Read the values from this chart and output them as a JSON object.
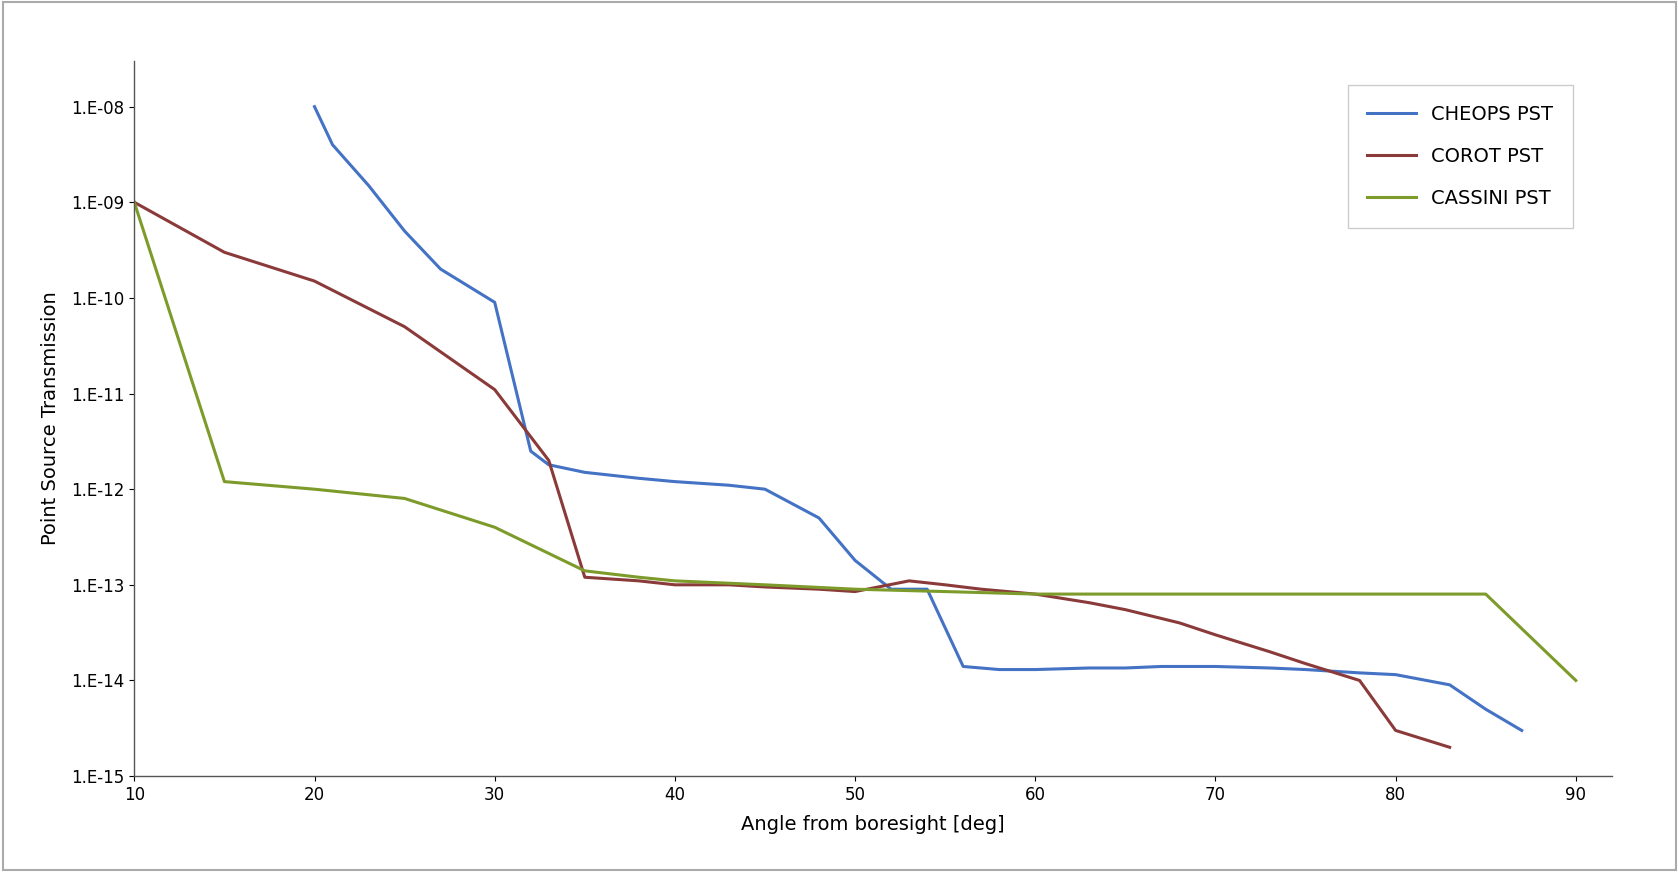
{
  "title": "",
  "xlabel": "Angle from boresight [deg]",
  "ylabel": "Point Source Transmission",
  "xlim": [
    10,
    92
  ],
  "ylim": [
    1e-15,
    3e-08
  ],
  "cheops_x": [
    20,
    21,
    23,
    25,
    27,
    30,
    32,
    33,
    35,
    38,
    40,
    43,
    45,
    48,
    50,
    52,
    54,
    56,
    58,
    60,
    63,
    65,
    67,
    70,
    73,
    75,
    78,
    80,
    83,
    85,
    87
  ],
  "cheops_y": [
    1e-08,
    4e-09,
    1.5e-09,
    5e-10,
    2e-10,
    9e-11,
    2.5e-12,
    1.8e-12,
    1.5e-12,
    1.3e-12,
    1.2e-12,
    1.1e-12,
    1e-12,
    5e-13,
    1.8e-13,
    9e-14,
    9e-14,
    1.4e-14,
    1.3e-14,
    1.3e-14,
    1.35e-14,
    1.35e-14,
    1.4e-14,
    1.4e-14,
    1.35e-14,
    1.3e-14,
    1.2e-14,
    1.15e-14,
    9e-15,
    5e-15,
    3e-15
  ],
  "corot_x": [
    10,
    15,
    20,
    25,
    30,
    33,
    35,
    38,
    40,
    43,
    45,
    48,
    50,
    53,
    55,
    57,
    60,
    63,
    65,
    68,
    70,
    73,
    75,
    78,
    80,
    83
  ],
  "corot_y": [
    1e-09,
    3e-10,
    1.5e-10,
    5e-11,
    1.1e-11,
    2e-12,
    1.2e-13,
    1.1e-13,
    1e-13,
    1e-13,
    9.5e-14,
    9e-14,
    8.5e-14,
    1.1e-13,
    1e-13,
    9e-14,
    8e-14,
    6.5e-14,
    5.5e-14,
    4e-14,
    3e-14,
    2e-14,
    1.5e-14,
    1e-14,
    3e-15,
    2e-15
  ],
  "cassini_x": [
    10,
    15,
    20,
    25,
    30,
    35,
    38,
    40,
    45,
    50,
    55,
    60,
    65,
    70,
    75,
    80,
    85,
    90
  ],
  "cassini_y": [
    1e-09,
    1.2e-12,
    1e-12,
    8e-13,
    4e-13,
    1.4e-13,
    1.2e-13,
    1.1e-13,
    1e-13,
    9e-14,
    8.5e-14,
    8e-14,
    8e-14,
    8e-14,
    8e-14,
    8e-14,
    8e-14,
    1e-14
  ],
  "cheops_color": "#4472C4",
  "corot_color": "#8B3A3A",
  "cassini_color": "#7D9B2A",
  "linewidth": 2.2,
  "legend_labels": [
    "CHEOPS PST",
    "COROT PST",
    "CASSINI PST"
  ],
  "legend_fontsize": 14,
  "axis_fontsize": 14,
  "tick_fontsize": 12,
  "ytick_labels": [
    "1.E-15",
    "1.E-14",
    "1.E-13",
    "1.E-12",
    "1.E-11",
    "1.E-10",
    "1.E-09",
    "1.E-08"
  ],
  "ytick_vals": [
    1e-15,
    1e-14,
    1e-13,
    1e-12,
    1e-11,
    1e-10,
    1e-09,
    1e-08
  ],
  "xtick_vals": [
    10,
    20,
    30,
    40,
    50,
    60,
    70,
    80,
    90
  ],
  "bg_color": "#ffffff",
  "border_color": "#aaaaaa"
}
